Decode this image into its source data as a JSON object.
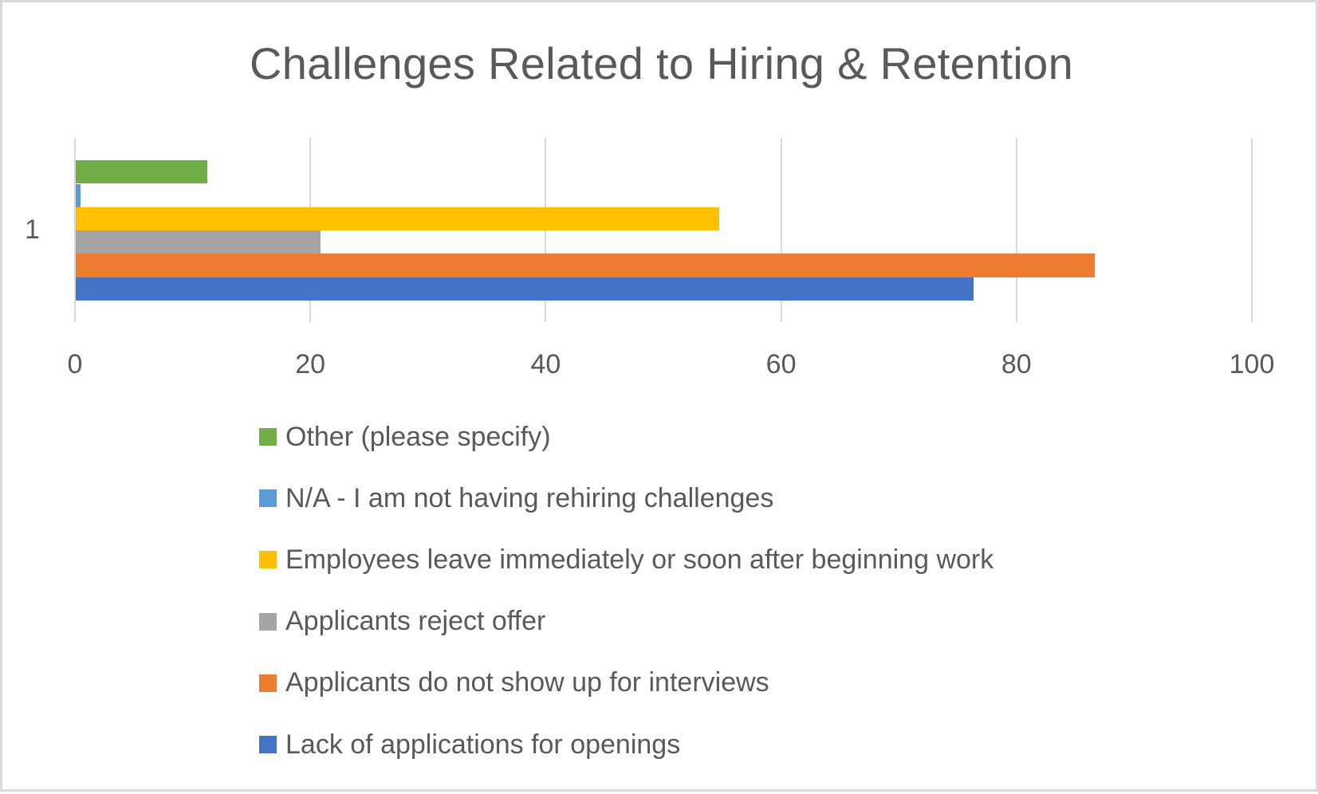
{
  "chart_data": {
    "type": "bar",
    "orientation": "horizontal",
    "title": "Challenges Related to Hiring & Retention",
    "categories": [
      "1"
    ],
    "xlabel": "",
    "ylabel": "",
    "xlim": [
      0,
      100
    ],
    "x_ticks": [
      "0",
      "20",
      "40",
      "60",
      "80",
      "100"
    ],
    "grid": true,
    "legend_position": "bottom",
    "series": [
      {
        "name": "Lack of applications for openings",
        "color": "#4472c4",
        "values": [
          76.3
        ]
      },
      {
        "name": "Applicants do not show up for interviews",
        "color": "#ed7d31",
        "values": [
          86.6
        ]
      },
      {
        "name": "Applicants reject offer",
        "color": "#a5a5a5",
        "values": [
          20.8
        ]
      },
      {
        "name": "Employees leave immediately or soon after beginning work",
        "color": "#ffc000",
        "values": [
          54.7
        ]
      },
      {
        "name": "N/A - I am not having rehiring challenges",
        "color": "#5b9bd5",
        "values": [
          0.4
        ]
      },
      {
        "name": "Other (please specify)",
        "color": "#70ad47",
        "values": [
          11.2
        ]
      }
    ]
  },
  "legend": [
    {
      "label": "Other (please specify)",
      "color": "#70ad47"
    },
    {
      "label": "N/A - I am not having rehiring challenges",
      "color": "#5b9bd5"
    },
    {
      "label": "Employees leave immediately or soon after beginning work",
      "color": "#ffc000"
    },
    {
      "label": "Applicants reject offer",
      "color": "#a5a5a5"
    },
    {
      "label": "Applicants do not show up for interviews",
      "color": "#ed7d31"
    },
    {
      "label": "Lack of applications for openings",
      "color": "#4472c4"
    }
  ]
}
